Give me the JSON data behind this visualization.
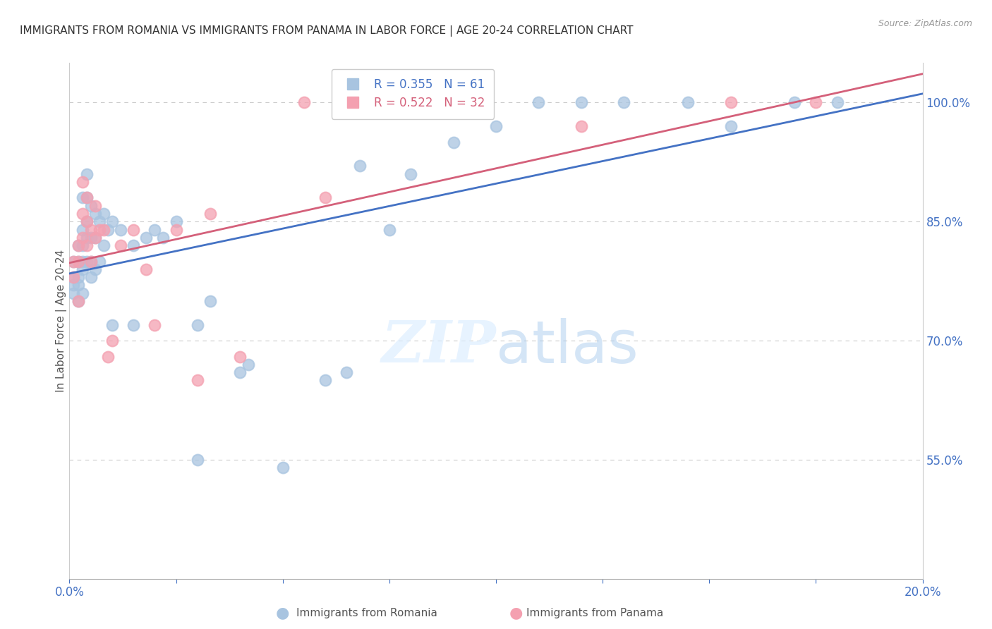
{
  "title": "IMMIGRANTS FROM ROMANIA VS IMMIGRANTS FROM PANAMA IN LABOR FORCE | AGE 20-24 CORRELATION CHART",
  "source": "Source: ZipAtlas.com",
  "ylabel": "In Labor Force | Age 20-24",
  "xlim": [
    0.0,
    0.2
  ],
  "ylim": [
    0.4,
    1.05
  ],
  "right_yticks": [
    0.55,
    0.7,
    0.85,
    1.0
  ],
  "right_yticklabels": [
    "55.0%",
    "70.0%",
    "85.0%",
    "100.0%"
  ],
  "romania_R": 0.355,
  "romania_N": 61,
  "panama_R": 0.522,
  "panama_N": 32,
  "romania_color": "#a8c4e0",
  "panama_color": "#f4a0b0",
  "romania_line_color": "#4472c4",
  "panama_line_color": "#d4607a",
  "background_color": "#ffffff",
  "grid_color": "#cccccc",
  "romania_x": [
    0.001,
    0.001,
    0.001,
    0.001,
    0.002,
    0.002,
    0.002,
    0.002,
    0.002,
    0.003,
    0.003,
    0.003,
    0.003,
    0.003,
    0.003,
    0.004,
    0.004,
    0.004,
    0.004,
    0.004,
    0.005,
    0.005,
    0.005,
    0.005,
    0.006,
    0.006,
    0.006,
    0.007,
    0.007,
    0.008,
    0.008,
    0.009,
    0.01,
    0.01,
    0.012,
    0.015,
    0.015,
    0.018,
    0.02,
    0.022,
    0.025,
    0.03,
    0.03,
    0.033,
    0.04,
    0.042,
    0.05,
    0.06,
    0.065,
    0.068,
    0.075,
    0.08,
    0.09,
    0.1,
    0.11,
    0.12,
    0.13,
    0.145,
    0.155,
    0.17,
    0.18
  ],
  "romania_y": [
    0.76,
    0.77,
    0.78,
    0.8,
    0.75,
    0.77,
    0.78,
    0.8,
    0.82,
    0.76,
    0.79,
    0.8,
    0.82,
    0.84,
    0.88,
    0.8,
    0.83,
    0.85,
    0.88,
    0.91,
    0.78,
    0.8,
    0.83,
    0.87,
    0.79,
    0.83,
    0.86,
    0.8,
    0.85,
    0.82,
    0.86,
    0.84,
    0.72,
    0.85,
    0.84,
    0.72,
    0.82,
    0.83,
    0.84,
    0.83,
    0.85,
    0.55,
    0.72,
    0.75,
    0.66,
    0.67,
    0.54,
    0.65,
    0.66,
    0.92,
    0.84,
    0.91,
    0.95,
    0.97,
    1.0,
    1.0,
    1.0,
    1.0,
    0.97,
    1.0,
    1.0
  ],
  "panama_x": [
    0.001,
    0.001,
    0.002,
    0.002,
    0.002,
    0.003,
    0.003,
    0.003,
    0.004,
    0.004,
    0.004,
    0.005,
    0.005,
    0.006,
    0.006,
    0.007,
    0.008,
    0.009,
    0.01,
    0.012,
    0.015,
    0.018,
    0.02,
    0.025,
    0.03,
    0.033,
    0.04,
    0.055,
    0.06,
    0.12,
    0.155,
    0.175
  ],
  "panama_y": [
    0.78,
    0.8,
    0.75,
    0.8,
    0.82,
    0.83,
    0.86,
    0.9,
    0.82,
    0.85,
    0.88,
    0.8,
    0.84,
    0.83,
    0.87,
    0.84,
    0.84,
    0.68,
    0.7,
    0.82,
    0.84,
    0.79,
    0.72,
    0.84,
    0.65,
    0.86,
    0.68,
    1.0,
    0.88,
    0.97,
    1.0,
    1.0
  ]
}
